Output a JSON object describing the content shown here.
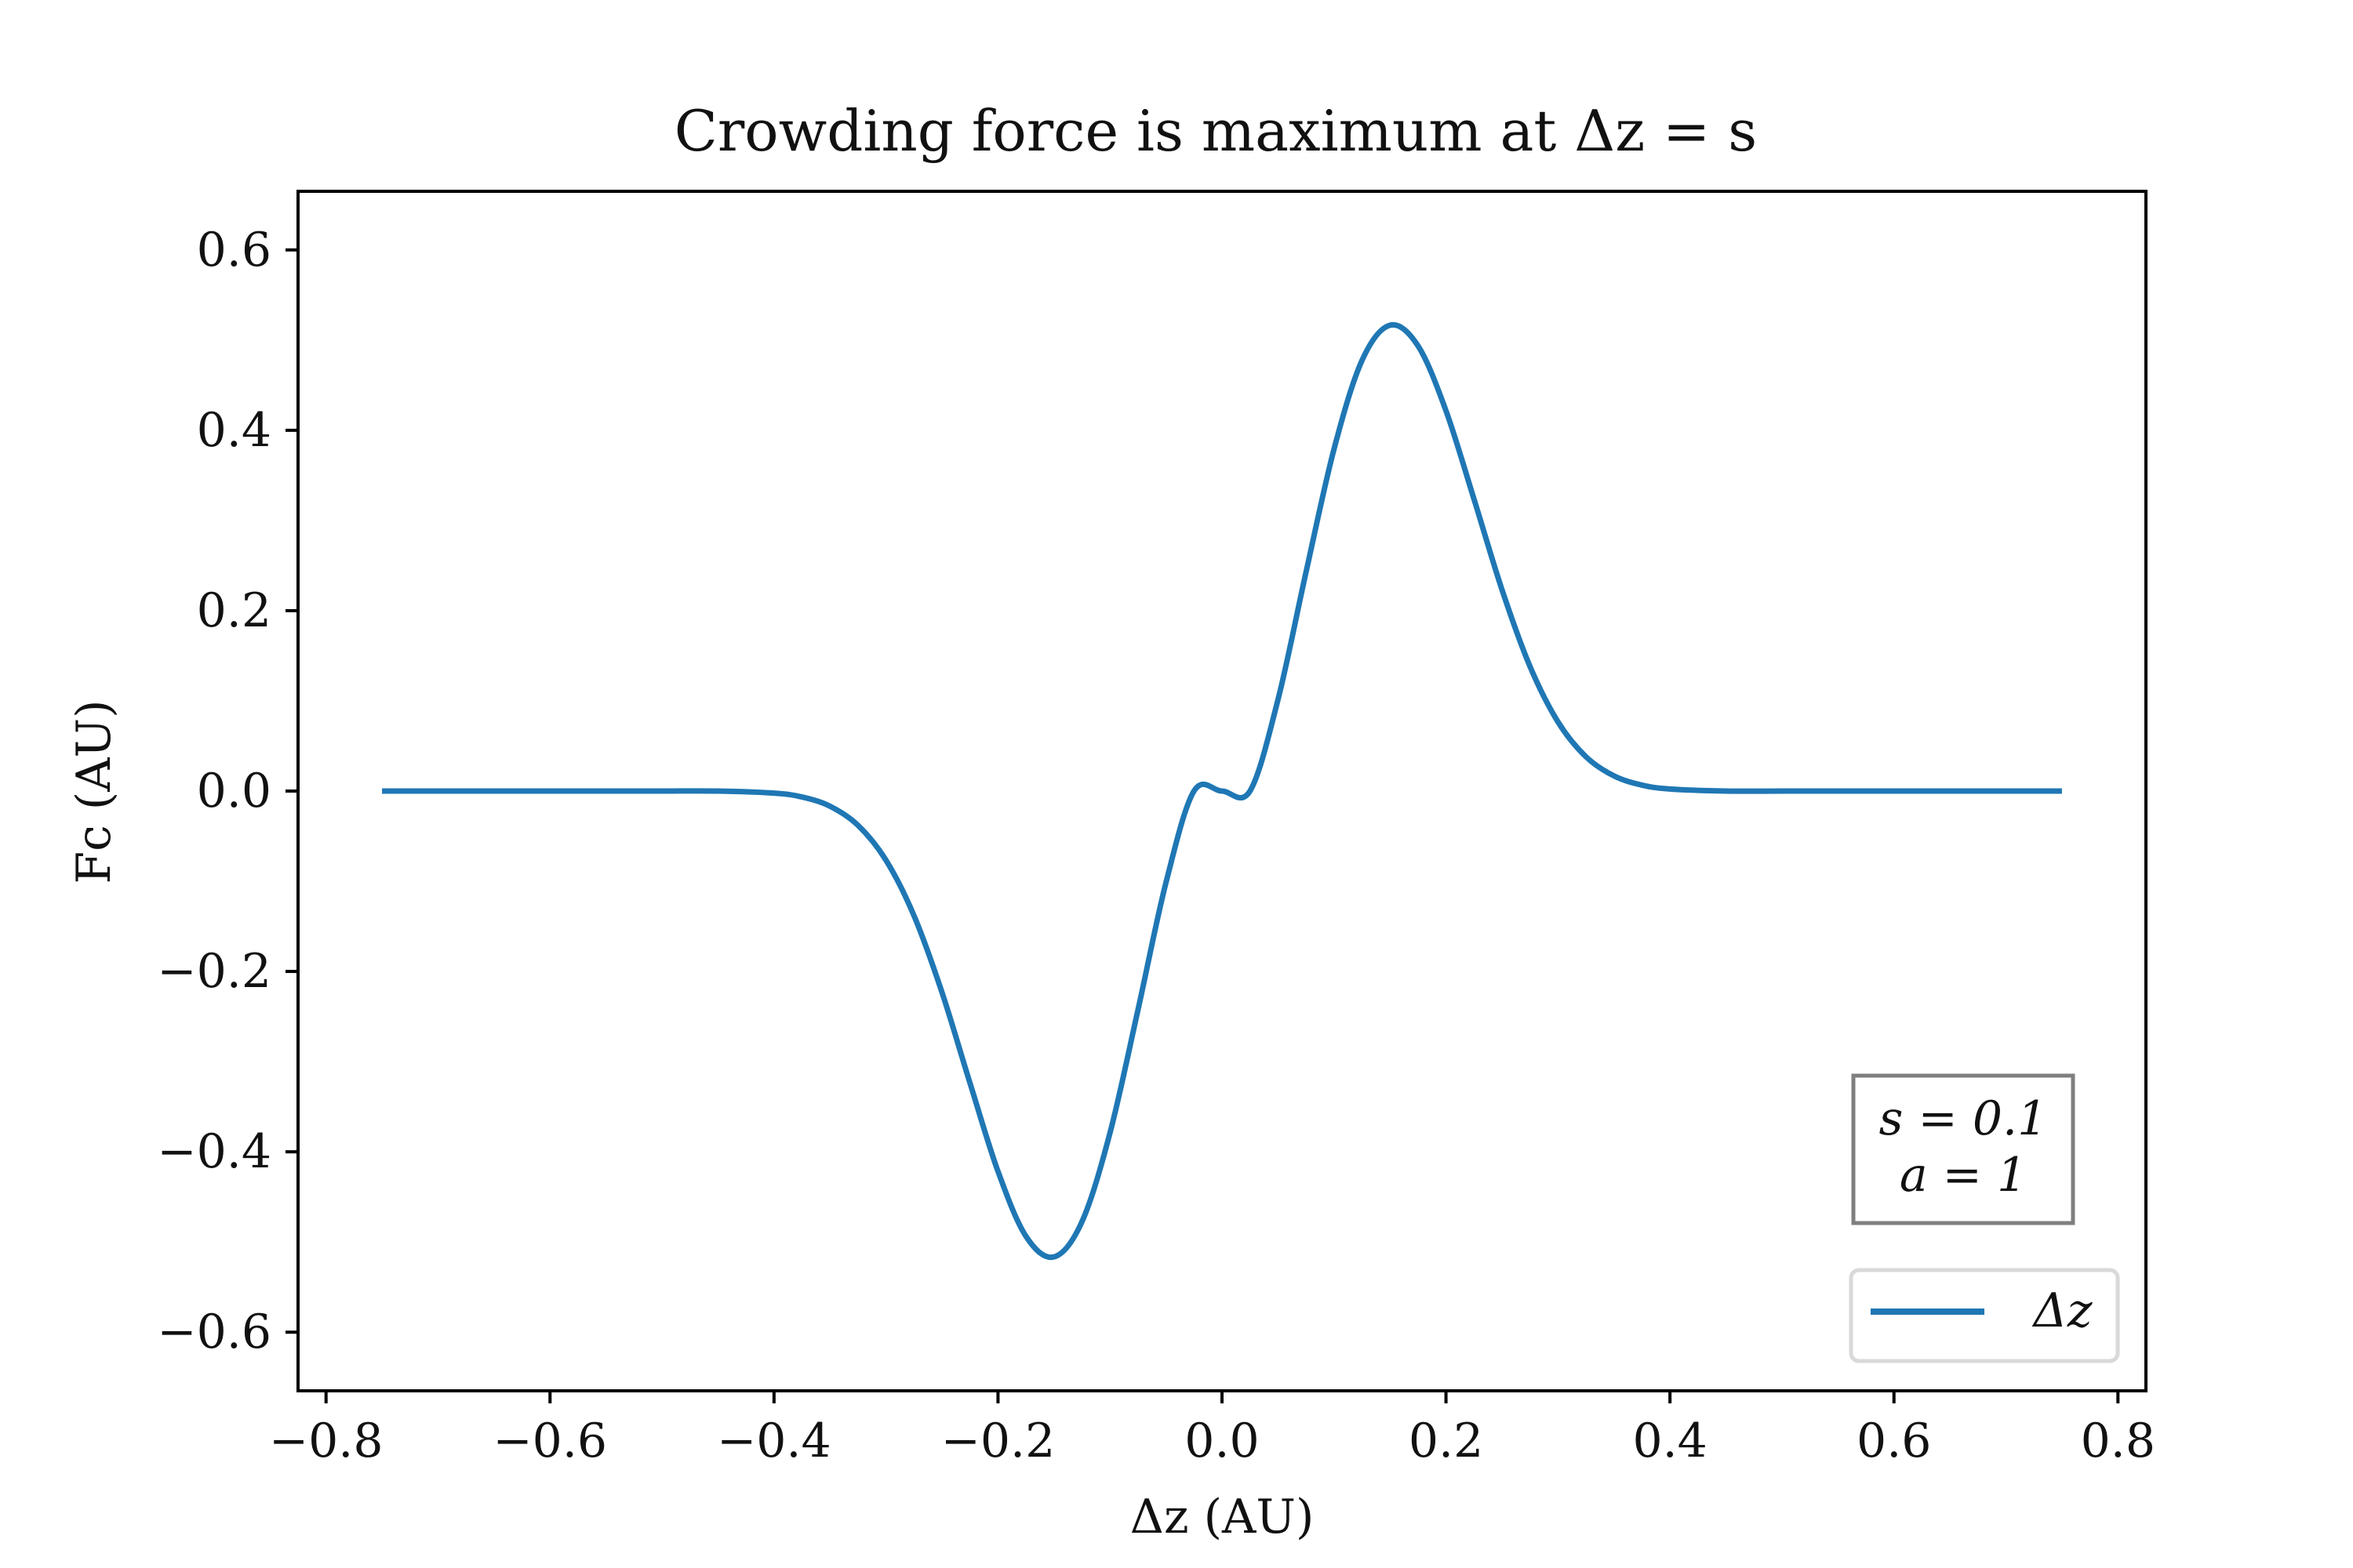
{
  "chart_data": {
    "type": "line",
    "title": "Crowding force is maximum at Δz = s",
    "xlabel": "Δz (AU)",
    "ylabel": "Fc (AU)",
    "xlim": [
      -0.825,
      0.825
    ],
    "ylim": [
      -0.665,
      0.665
    ],
    "x_ticks": [
      -0.8,
      -0.6,
      -0.4,
      -0.2,
      0.0,
      0.2,
      0.4,
      0.6,
      0.8
    ],
    "x_tick_labels": [
      "−0.8",
      "−0.6",
      "−0.4",
      "−0.2",
      "0.0",
      "0.2",
      "0.4",
      "0.6",
      "0.8"
    ],
    "y_ticks": [
      -0.6,
      -0.4,
      -0.2,
      0.0,
      0.2,
      0.4,
      0.6
    ],
    "y_tick_labels": [
      "−0.6",
      "−0.4",
      "−0.2",
      "0.0",
      "0.2",
      "0.4",
      "0.6"
    ],
    "grid": false,
    "legend_position": "bottom-right",
    "annotation": {
      "lines": [
        "s = 0.1",
        "a = 1"
      ],
      "position": "bottom-right"
    },
    "series": [
      {
        "name": "Δz",
        "color": "#1f77b4",
        "x": [
          -0.75,
          -0.7,
          -0.65,
          -0.6,
          -0.55,
          -0.5,
          -0.45,
          -0.4,
          -0.375,
          -0.35,
          -0.325,
          -0.3,
          -0.275,
          -0.25,
          -0.225,
          -0.2,
          -0.175,
          -0.15,
          -0.125,
          -0.1,
          -0.075,
          -0.05,
          -0.025,
          0.0,
          0.025,
          0.05,
          0.075,
          0.1,
          0.125,
          0.15,
          0.175,
          0.2,
          0.225,
          0.25,
          0.275,
          0.3,
          0.325,
          0.35,
          0.375,
          0.4,
          0.45,
          0.5,
          0.55,
          0.6,
          0.65,
          0.7,
          0.75
        ],
        "y": [
          0.0,
          0.0,
          0.0,
          0.0,
          0.0,
          0.0,
          0.0,
          -0.0023,
          -0.0066,
          -0.0168,
          -0.038,
          -0.0767,
          -0.1382,
          -0.2233,
          -0.3238,
          -0.4217,
          -0.4937,
          -0.5165,
          -0.4774,
          -0.379,
          -0.2425,
          -0.1014,
          0.0,
          0.0,
          0.0,
          0.1014,
          0.2425,
          0.379,
          0.4774,
          0.5165,
          0.4937,
          0.4217,
          0.3238,
          0.2233,
          0.1382,
          0.0767,
          0.038,
          0.0168,
          0.0066,
          0.0023,
          0.0,
          0.0,
          0.0,
          0.0,
          0.0,
          0.0,
          0.0
        ]
      }
    ]
  }
}
